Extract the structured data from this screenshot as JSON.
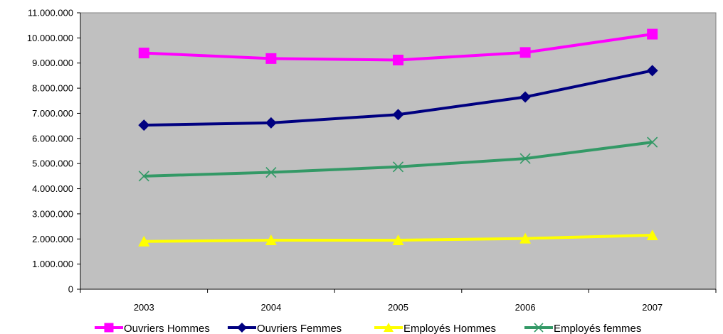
{
  "chart_data": {
    "type": "line",
    "title": "",
    "xlabel": "",
    "ylabel": "",
    "categories": [
      "2003",
      "2004",
      "2005",
      "2006",
      "2007"
    ],
    "ylim": [
      0,
      11000000
    ],
    "yticks": [
      0,
      1000000,
      2000000,
      3000000,
      4000000,
      5000000,
      6000000,
      7000000,
      8000000,
      9000000,
      10000000,
      11000000
    ],
    "ytick_labels": [
      "0",
      "1.000.000",
      "2.000.000",
      "3.000.000",
      "4.000.000",
      "5.000.000",
      "6.000.000",
      "7.000.000",
      "8.000.000",
      "9.000.000",
      "10.000.000",
      "11.000.000"
    ],
    "grid": false,
    "plot_background": "#c0c0c0",
    "legend_position": "bottom",
    "series": [
      {
        "name": "Ouvriers Hommes",
        "marker": "square",
        "color": "#ff00ff",
        "values": [
          9400000,
          9180000,
          9120000,
          9420000,
          10150000
        ]
      },
      {
        "name": "Ouvriers Femmes",
        "marker": "diamond",
        "color": "#000080",
        "values": [
          6530000,
          6620000,
          6950000,
          7650000,
          8700000
        ]
      },
      {
        "name": "Employés Hommes",
        "marker": "triangle",
        "color": "#ffff00",
        "values": [
          1900000,
          1950000,
          1950000,
          2020000,
          2150000
        ]
      },
      {
        "name": "Employés femmes",
        "marker": "x",
        "color": "#339966",
        "values": [
          4500000,
          4650000,
          4870000,
          5200000,
          5850000
        ]
      }
    ]
  }
}
